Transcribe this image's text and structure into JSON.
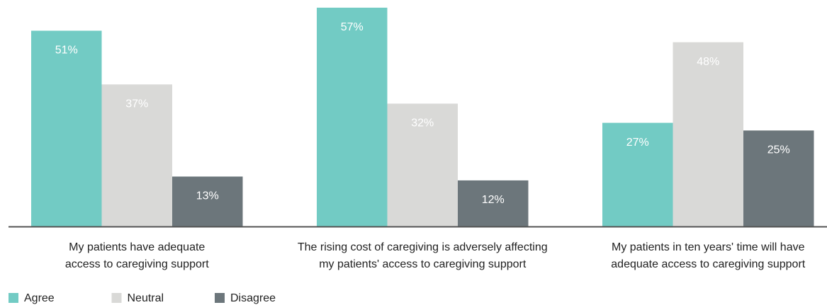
{
  "chart_data": {
    "type": "bar",
    "categories": [
      "My patients have adequate\naccess to caregiving support",
      "The rising cost of caregiving is adversely affecting\nmy patients' access to caregiving support",
      "My patients in ten years' time will have\nadequate access to caregiving support"
    ],
    "series": [
      {
        "name": "Agree",
        "color": "#72cbc4",
        "values": [
          51,
          57,
          27
        ],
        "value_labels": [
          "51%",
          "57%",
          "27%"
        ]
      },
      {
        "name": "Neutral",
        "color": "#d9d9d7",
        "values": [
          37,
          32,
          48
        ],
        "value_labels": [
          "37%",
          "32%",
          "48%"
        ]
      },
      {
        "name": "Disagree",
        "color": "#6c767b",
        "values": [
          13,
          12,
          25
        ],
        "value_labels": [
          "13%",
          "12%",
          "25%"
        ]
      }
    ],
    "ylim": [
      0,
      59
    ],
    "legend": "bottom-left"
  }
}
